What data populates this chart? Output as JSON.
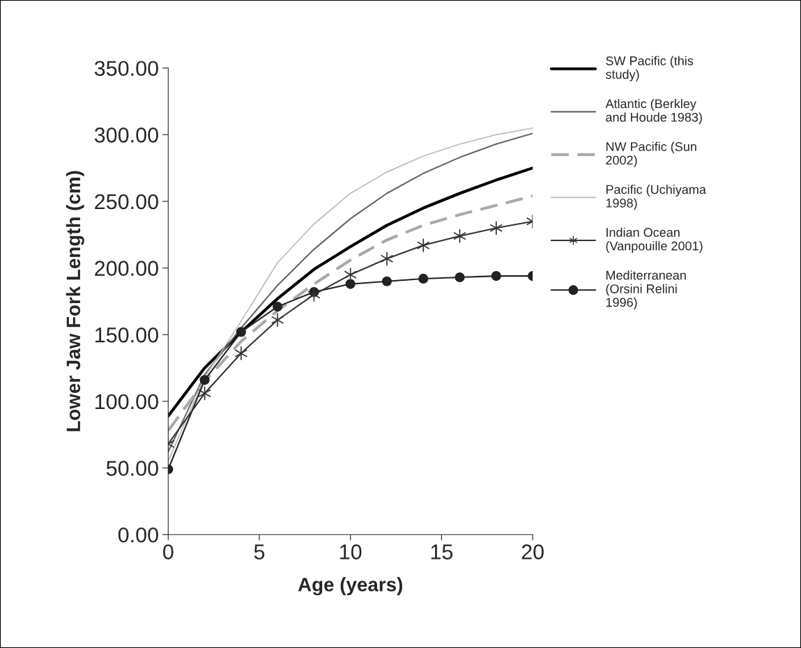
{
  "chart_data": {
    "type": "line",
    "xlabel": "Age (years)",
    "ylabel": "Lower Jaw Fork Length (cm)",
    "x": [
      0,
      2,
      4,
      6,
      8,
      10,
      12,
      14,
      16,
      18,
      20
    ],
    "xlim": [
      0,
      20
    ],
    "xticks": [
      0,
      5,
      10,
      15,
      20
    ],
    "ylim": [
      0,
      350
    ],
    "yticks": [
      {
        "value": 0,
        "label": "0.00"
      },
      {
        "value": 50,
        "label": "50.00"
      },
      {
        "value": 100,
        "label": "100.00"
      },
      {
        "value": 150,
        "label": "150.00"
      },
      {
        "value": 200,
        "label": "200.00"
      },
      {
        "value": 250,
        "label": "250.00"
      },
      {
        "value": 300,
        "label": "300.00"
      },
      {
        "value": 350,
        "label": "350.00"
      }
    ],
    "grid": false,
    "legend": "right",
    "series": [
      {
        "name": "SW Pacific (this study)",
        "color": "#000000",
        "line_style": "solid",
        "marker": "none",
        "values": [
          89,
          125,
          152,
          177,
          199,
          216,
          232,
          245,
          256,
          266,
          275
        ]
      },
      {
        "name": "Atlantic (Berkley and Houde 1983)",
        "color": "#666666",
        "line_style": "solid",
        "marker": "none",
        "values": [
          62,
          120,
          155,
          187,
          214,
          237,
          256,
          271,
          283,
          293,
          301
        ]
      },
      {
        "name": "NW Pacific (Sun 2002)",
        "color": "#aaaaaa",
        "line_style": "dashed",
        "marker": "none",
        "values": [
          78,
          115,
          145,
          168,
          188,
          206,
          221,
          232,
          240,
          247,
          254
        ]
      },
      {
        "name": "Pacific (Uchiyama 1998)",
        "color": "#bbbbbb",
        "line_style": "solid",
        "marker": "none",
        "values": [
          55,
          118,
          160,
          204,
          233,
          256,
          272,
          284,
          293,
          300,
          305
        ]
      },
      {
        "name": "Indian Ocean (Vanpouille 2001)",
        "color": "#333333",
        "line_style": "solid",
        "marker": "cross",
        "values": [
          68,
          106,
          136,
          161,
          180,
          195,
          207,
          217,
          224,
          230,
          235
        ]
      },
      {
        "name": "Mediterranean (Orsini Relini 1996)",
        "color": "#222222",
        "line_style": "solid",
        "marker": "circle",
        "values": [
          49,
          116,
          152,
          171,
          182,
          188,
          190,
          192,
          193,
          194,
          194
        ]
      }
    ]
  }
}
